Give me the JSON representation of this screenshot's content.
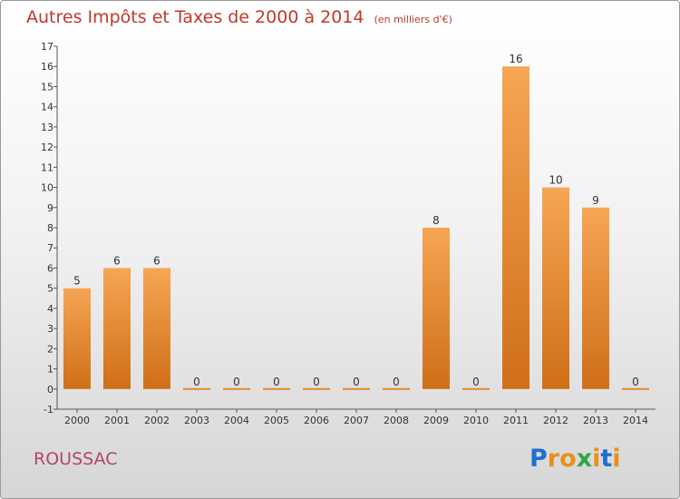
{
  "header": {
    "title": "Autres Impôts et Taxes de 2000 à 2014",
    "subtitle": "(en milliers d'€)"
  },
  "footer": {
    "commune": "ROUSSAC",
    "logo_text": "Proxiti",
    "logo_colors": [
      "#1f6fd1",
      "#e8901c",
      "#e8901c",
      "#2fa64a",
      "#e8901c",
      "#1f6fd1",
      "#e8901c"
    ]
  },
  "chart_data": {
    "type": "bar",
    "categories": [
      "2000",
      "2001",
      "2002",
      "2003",
      "2004",
      "2005",
      "2006",
      "2007",
      "2008",
      "2009",
      "2010",
      "2011",
      "2012",
      "2013",
      "2014"
    ],
    "values": [
      5,
      6,
      6,
      0,
      0,
      0,
      0,
      0,
      0,
      8,
      0,
      16,
      10,
      9,
      0
    ],
    "data_labels": [
      "5",
      "6",
      "6",
      "0",
      "0",
      "0",
      "0",
      "0",
      "0",
      "8",
      "0",
      "16",
      "10",
      "9",
      "0"
    ],
    "yticks": [
      "-1",
      "0",
      "1",
      "2",
      "3",
      "4",
      "5",
      "6",
      "7",
      "8",
      "9",
      "10",
      "11",
      "12",
      "13",
      "14",
      "15",
      "16",
      "17"
    ],
    "ylim": [
      -1,
      17
    ],
    "bar_color": "#e8862c",
    "grid": false
  }
}
